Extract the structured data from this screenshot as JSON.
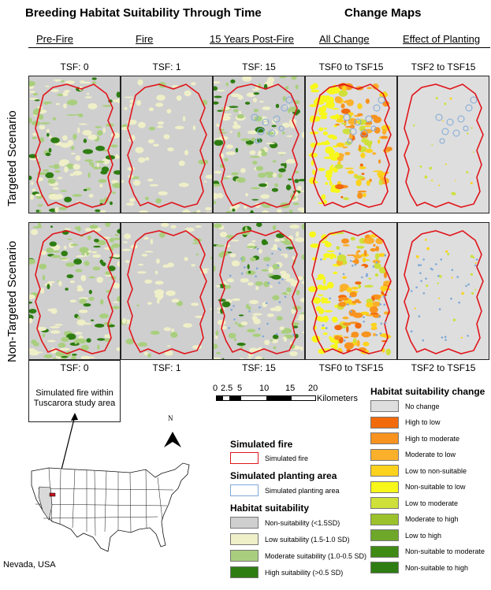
{
  "header": {
    "title_left": "Breeding  Habitat  Suitability  Through  Time",
    "title_right": "Change  Maps",
    "columns": [
      "Pre-Fire",
      "Fire",
      "15 Years Post-Fire",
      "All Change",
      "Effect of Planting"
    ]
  },
  "tsf_top": [
    "TSF: 0",
    "TSF: 1",
    "TSF: 15",
    "TSF0 to TSF15",
    "TSF2 to TSF15"
  ],
  "tsf_bottom": [
    "TSF: 0",
    "TSF: 1",
    "TSF: 15",
    "TSF0 to TSF15",
    "TSF2 to TSF15"
  ],
  "rows": [
    "Targeted  Scenario",
    "Non-Targeted  Scenario"
  ],
  "inset": {
    "label": "Simulated fire within Tuscarora study area",
    "state_label": "Nevada, USA",
    "north_label": "N"
  },
  "scale_bar": {
    "ticks": [
      "0",
      "2.5",
      "5",
      "10",
      "15",
      "20"
    ],
    "unit": "Kilometers"
  },
  "legend_fire": {
    "title": "Simulated fire",
    "item": "Simulated fire",
    "color": "#e0151b"
  },
  "legend_planting": {
    "title": "Simulated planting area",
    "item": "Simulated planting area",
    "color": "#7fa8d8"
  },
  "legend_suitability": {
    "title": "Habitat suitability",
    "items": [
      {
        "label": "Non-suitability (<1.5SD)",
        "color": "#cfcfcf"
      },
      {
        "label": "Low suitability (1.5-1.0 SD)",
        "color": "#efefc8"
      },
      {
        "label": "Moderate suitability (1.0-0.5 SD)",
        "color": "#a9cf7e"
      },
      {
        "label": "High suitability (>0.5 SD)",
        "color": "#2e7d12"
      }
    ]
  },
  "legend_change": {
    "title": "Habitat suitability change",
    "items": [
      {
        "label": "No change",
        "color": "#dedede"
      },
      {
        "label": "High to low",
        "color": "#f26a0c"
      },
      {
        "label": "High to moderate",
        "color": "#f7931e"
      },
      {
        "label": "Moderate to low",
        "color": "#fbb02c"
      },
      {
        "label": "Low to non-suitable",
        "color": "#fcd21c"
      },
      {
        "label": "Non-suitable to low",
        "color": "#f7f71a"
      },
      {
        "label": "Low to moderate",
        "color": "#cfe03a"
      },
      {
        "label": "Moderate to high",
        "color": "#9bc22a"
      },
      {
        "label": "Low to high",
        "color": "#6ea72a"
      },
      {
        "label": "Non-suitable to moderate",
        "color": "#3f8a14"
      },
      {
        "label": "Non-suitable to high",
        "color": "#2e7d12"
      }
    ]
  }
}
